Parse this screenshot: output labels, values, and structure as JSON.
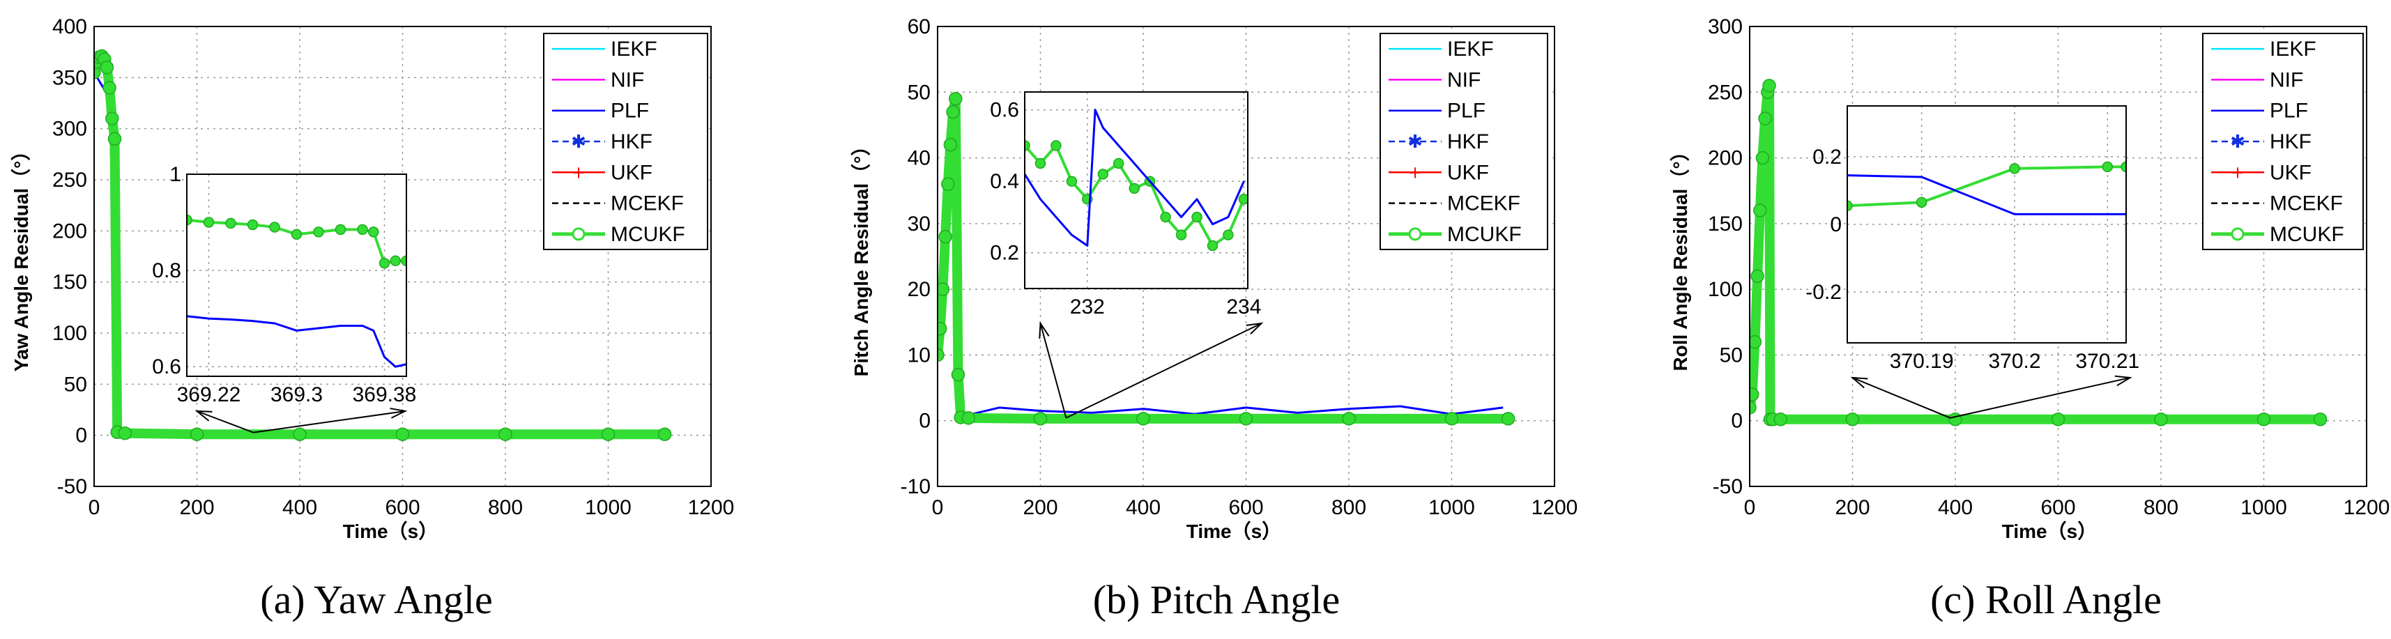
{
  "chart_data": [
    {
      "type": "line",
      "caption": "(a)  Yaw Angle",
      "xlabel": "Time（s）",
      "ylabel": "Yaw Angle Residual（°）",
      "xlim": [
        0,
        1200
      ],
      "ylim": [
        -50,
        400
      ],
      "xticks": [
        0,
        200,
        400,
        600,
        800,
        1000,
        1200
      ],
      "yticks": [
        -50,
        0,
        50,
        100,
        150,
        200,
        250,
        300,
        350,
        400
      ],
      "xtick_labels": [
        "0",
        "200",
        "400",
        "600",
        "800",
        "1000",
        "1200"
      ],
      "ytick_labels": [
        "-50",
        "0",
        "50",
        "100",
        "150",
        "200",
        "250",
        "300",
        "350",
        "400"
      ],
      "legend": [
        "IEKF",
        "NIF",
        "PLF",
        "HKF",
        "UKF",
        "MCEKF",
        "MCUKF"
      ],
      "legend_position": "top-right",
      "series": [
        {
          "name": "MCUKF",
          "x": [
            0,
            5,
            10,
            15,
            20,
            25,
            30,
            35,
            40,
            45,
            60,
            200,
            400,
            600,
            800,
            1000,
            1110
          ],
          "values": [
            355,
            365,
            370,
            371,
            368,
            360,
            340,
            310,
            290,
            3,
            2,
            1,
            1,
            1,
            1,
            1,
            1
          ]
        },
        {
          "name": "PLF",
          "x": [
            0,
            30,
            40,
            45,
            1110
          ],
          "values": [
            355,
            330,
            150,
            2,
            1
          ]
        }
      ],
      "inset": {
        "xlim": [
          369.2,
          369.4
        ],
        "ylim": [
          0.58,
          1.0
        ],
        "xticks": [
          369.22,
          369.3,
          369.38
        ],
        "yticks": [
          0.6,
          0.8,
          1.0
        ],
        "xtick_labels": [
          "369.22",
          "369.3",
          "369.38"
        ],
        "ytick_labels": [
          "0.6",
          "0.8",
          "1"
        ],
        "series": [
          {
            "name": "MCUKF",
            "x": [
              369.2,
              369.22,
              369.24,
              369.26,
              369.28,
              369.3,
              369.32,
              369.34,
              369.36,
              369.37,
              369.38,
              369.39,
              369.4
            ],
            "values": [
              0.905,
              0.9,
              0.898,
              0.895,
              0.89,
              0.875,
              0.88,
              0.885,
              0.885,
              0.88,
              0.815,
              0.82,
              0.82
            ]
          },
          {
            "name": "PLF",
            "x": [
              369.2,
              369.22,
              369.24,
              369.26,
              369.28,
              369.3,
              369.32,
              369.34,
              369.36,
              369.37,
              369.38,
              369.39,
              369.4
            ],
            "values": [
              0.705,
              0.7,
              0.698,
              0.695,
              0.69,
              0.675,
              0.68,
              0.685,
              0.685,
              0.675,
              0.62,
              0.6,
              0.605
            ]
          }
        ],
        "arrow_from_x": 310,
        "arrow_to_x": [
          200,
          605
        ]
      }
    },
    {
      "type": "line",
      "caption": "(b)  Pitch Angle",
      "xlabel": "Time（s）",
      "ylabel": "Pitch Angle Residual（°）",
      "xlim": [
        0,
        1200
      ],
      "ylim": [
        -10,
        60
      ],
      "xticks": [
        0,
        200,
        400,
        600,
        800,
        1000,
        1200
      ],
      "yticks": [
        -10,
        0,
        10,
        20,
        30,
        40,
        50,
        60
      ],
      "xtick_labels": [
        "0",
        "200",
        "400",
        "600",
        "800",
        "1000",
        "1200"
      ],
      "ytick_labels": [
        "-10",
        "0",
        "10",
        "20",
        "30",
        "40",
        "50",
        "60"
      ],
      "legend": [
        "IEKF",
        "NIF",
        "PLF",
        "HKF",
        "UKF",
        "MCEKF",
        "MCUKF"
      ],
      "legend_position": "top-right",
      "series": [
        {
          "name": "MCUKF",
          "x": [
            0,
            5,
            10,
            15,
            20,
            25,
            30,
            35,
            40,
            45,
            60,
            200,
            400,
            600,
            800,
            1000,
            1110
          ],
          "values": [
            10,
            14,
            20,
            28,
            36,
            42,
            47,
            49,
            7,
            0.5,
            0.4,
            0.3,
            0.3,
            0.3,
            0.3,
            0.3,
            0.3
          ]
        },
        {
          "name": "PLF",
          "x": [
            40,
            120,
            200,
            300,
            400,
            500,
            600,
            700,
            800,
            900,
            1000,
            1100
          ],
          "values": [
            0.5,
            2,
            1.5,
            1.2,
            1.8,
            1.0,
            2.0,
            1.2,
            1.8,
            2.2,
            1.0,
            2.0
          ]
        }
      ],
      "inset": {
        "xlim": [
          231.2,
          234.05
        ],
        "ylim": [
          0.1,
          0.65
        ],
        "xticks": [
          232,
          234
        ],
        "yticks": [
          0.2,
          0.4,
          0.6
        ],
        "xtick_labels": [
          "232",
          "234"
        ],
        "ytick_labels": [
          "0.2",
          "0.4",
          "0.6"
        ],
        "series": [
          {
            "name": "MCUKF",
            "x": [
              231.2,
              231.4,
              231.6,
              231.8,
              232.0,
              232.2,
              232.4,
              232.6,
              232.8,
              233.0,
              233.2,
              233.4,
              233.6,
              233.8,
              234.0
            ],
            "values": [
              0.5,
              0.45,
              0.5,
              0.4,
              0.35,
              0.42,
              0.45,
              0.38,
              0.4,
              0.3,
              0.25,
              0.3,
              0.22,
              0.25,
              0.35
            ]
          },
          {
            "name": "PLF",
            "x": [
              231.2,
              231.4,
              231.6,
              231.8,
              232.0,
              232.1,
              232.2,
              232.4,
              232.6,
              232.8,
              233.0,
              233.2,
              233.4,
              233.6,
              233.8,
              234.0
            ],
            "values": [
              0.42,
              0.35,
              0.3,
              0.25,
              0.22,
              0.6,
              0.55,
              0.5,
              0.45,
              0.4,
              0.35,
              0.3,
              0.35,
              0.28,
              0.3,
              0.4
            ]
          }
        ],
        "arrow_from_x": 250,
        "arrow_to_x": [
          200,
          630
        ]
      }
    },
    {
      "type": "line",
      "caption": "(c)  Roll Angle",
      "xlabel": "Time（s）",
      "ylabel": "Roll Angle Residual（°）",
      "xlim": [
        0,
        1200
      ],
      "ylim": [
        -50,
        300
      ],
      "xticks": [
        0,
        200,
        400,
        600,
        800,
        1000,
        1200
      ],
      "yticks": [
        -50,
        0,
        50,
        100,
        150,
        200,
        250,
        300
      ],
      "xtick_labels": [
        "0",
        "200",
        "400",
        "600",
        "800",
        "1000",
        "1200"
      ],
      "ytick_labels": [
        "-50",
        "0",
        "50",
        "100",
        "150",
        "200",
        "250",
        "300"
      ],
      "legend": [
        "IEKF",
        "NIF",
        "PLF",
        "HKF",
        "UKF",
        "MCEKF",
        "MCUKF"
      ],
      "legend_position": "top-right",
      "series": [
        {
          "name": "MCUKF",
          "x": [
            0,
            5,
            10,
            15,
            20,
            25,
            30,
            35,
            38,
            40,
            45,
            60,
            200,
            400,
            600,
            800,
            1000,
            1110
          ],
          "values": [
            10,
            20,
            60,
            110,
            160,
            200,
            230,
            250,
            255,
            1,
            1,
            1,
            1,
            1,
            1,
            1,
            1,
            1
          ]
        },
        {
          "name": "PLF",
          "x": [
            38,
            42,
            44,
            1110
          ],
          "values": [
            170,
            170,
            1,
            1
          ]
        }
      ],
      "inset": {
        "xlim": [
          370.182,
          370.212
        ],
        "ylim": [
          -0.35,
          0.35
        ],
        "xticks": [
          370.19,
          370.2,
          370.21
        ],
        "yticks": [
          -0.2,
          0.0,
          0.2
        ],
        "xtick_labels": [
          "370.19",
          "370.2",
          "370.21"
        ],
        "ytick_labels": [
          "-0.2",
          "0",
          "0.2"
        ],
        "series": [
          {
            "name": "MCUKF",
            "x": [
              370.182,
              370.19,
              370.2,
              370.21,
              370.212
            ],
            "values": [
              0.055,
              0.065,
              0.165,
              0.17,
              0.17
            ]
          },
          {
            "name": "PLF",
            "x": [
              370.182,
              370.19,
              370.2,
              370.21,
              370.212
            ],
            "values": [
              0.145,
              0.14,
              0.03,
              0.03,
              0.03
            ]
          }
        ],
        "arrow_from_x": 390,
        "arrow_to_x": [
          200,
          740
        ]
      }
    }
  ],
  "colors": {
    "IEKF": "#00e5ff",
    "NIF": "#ff00ff",
    "PLF": "#0000ff",
    "HKF": "#1030e0",
    "UKF": "#ff0000",
    "MCEKF": "#000000",
    "MCUKF": "#33dd33"
  }
}
